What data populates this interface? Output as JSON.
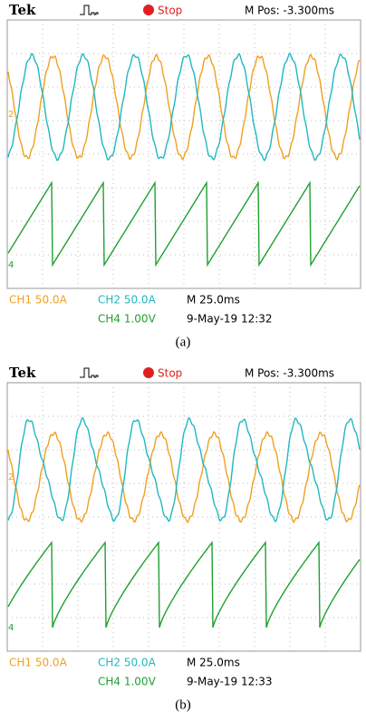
{
  "panels": [
    {
      "brand": "Tek",
      "status": "Stop",
      "m_pos": "M Pos: -3.300ms",
      "ch1": "CH1 50.0A",
      "ch2": "CH2 50.0A",
      "timebase": "M 25.0ms",
      "ch4": "CH4 1.00V",
      "timestamp": "9-May-19 12:32",
      "caption": "(a)",
      "markers": [
        "2",
        "4"
      ]
    },
    {
      "brand": "Tek",
      "status": "Stop",
      "m_pos": "M Pos: -3.300ms",
      "ch1": "CH1 50.0A",
      "ch2": "CH2 50.0A",
      "timebase": "M 25.0ms",
      "ch4": "CH4 1.00V",
      "timestamp": "9-May-19 12:33",
      "caption": "(b)",
      "markers": [
        "2",
        "4"
      ]
    }
  ]
}
